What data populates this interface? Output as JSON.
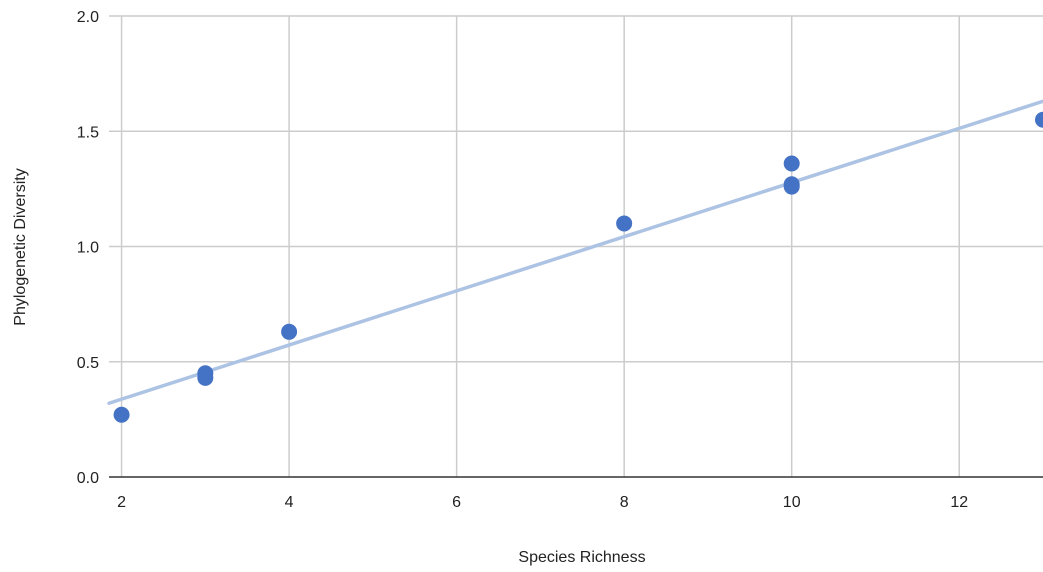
{
  "chart_data": {
    "type": "scatter",
    "title": "",
    "xlabel": "Species Richness",
    "ylabel": "Phylogenetic Diversity",
    "xlim": [
      1.85,
      13
    ],
    "ylim": [
      0,
      2
    ],
    "x_ticks": [
      2,
      4,
      6,
      8,
      10,
      12
    ],
    "y_ticks": [
      0.0,
      0.5,
      1.0,
      1.5,
      2.0
    ],
    "x_tick_labels": [
      "2",
      "4",
      "6",
      "8",
      "10",
      "12"
    ],
    "y_tick_labels": [
      "0.0",
      "0.5",
      "1.0",
      "1.5",
      "2.0"
    ],
    "grid": true,
    "points": [
      {
        "x": 2,
        "y": 0.27
      },
      {
        "x": 3,
        "y": 0.45
      },
      {
        "x": 3,
        "y": 0.43
      },
      {
        "x": 4,
        "y": 0.63
      },
      {
        "x": 8,
        "y": 1.1
      },
      {
        "x": 10,
        "y": 1.36
      },
      {
        "x": 10,
        "y": 1.27
      },
      {
        "x": 10,
        "y": 1.26
      },
      {
        "x": 13,
        "y": 1.55
      }
    ],
    "trendline": {
      "x0": 1.85,
      "y0": 0.32,
      "x1": 13,
      "y1": 1.63
    },
    "colors": {
      "point": "#4472c4",
      "trendline": "#adc3e4",
      "grid": "#cccccc",
      "baseline": "#333333"
    }
  }
}
